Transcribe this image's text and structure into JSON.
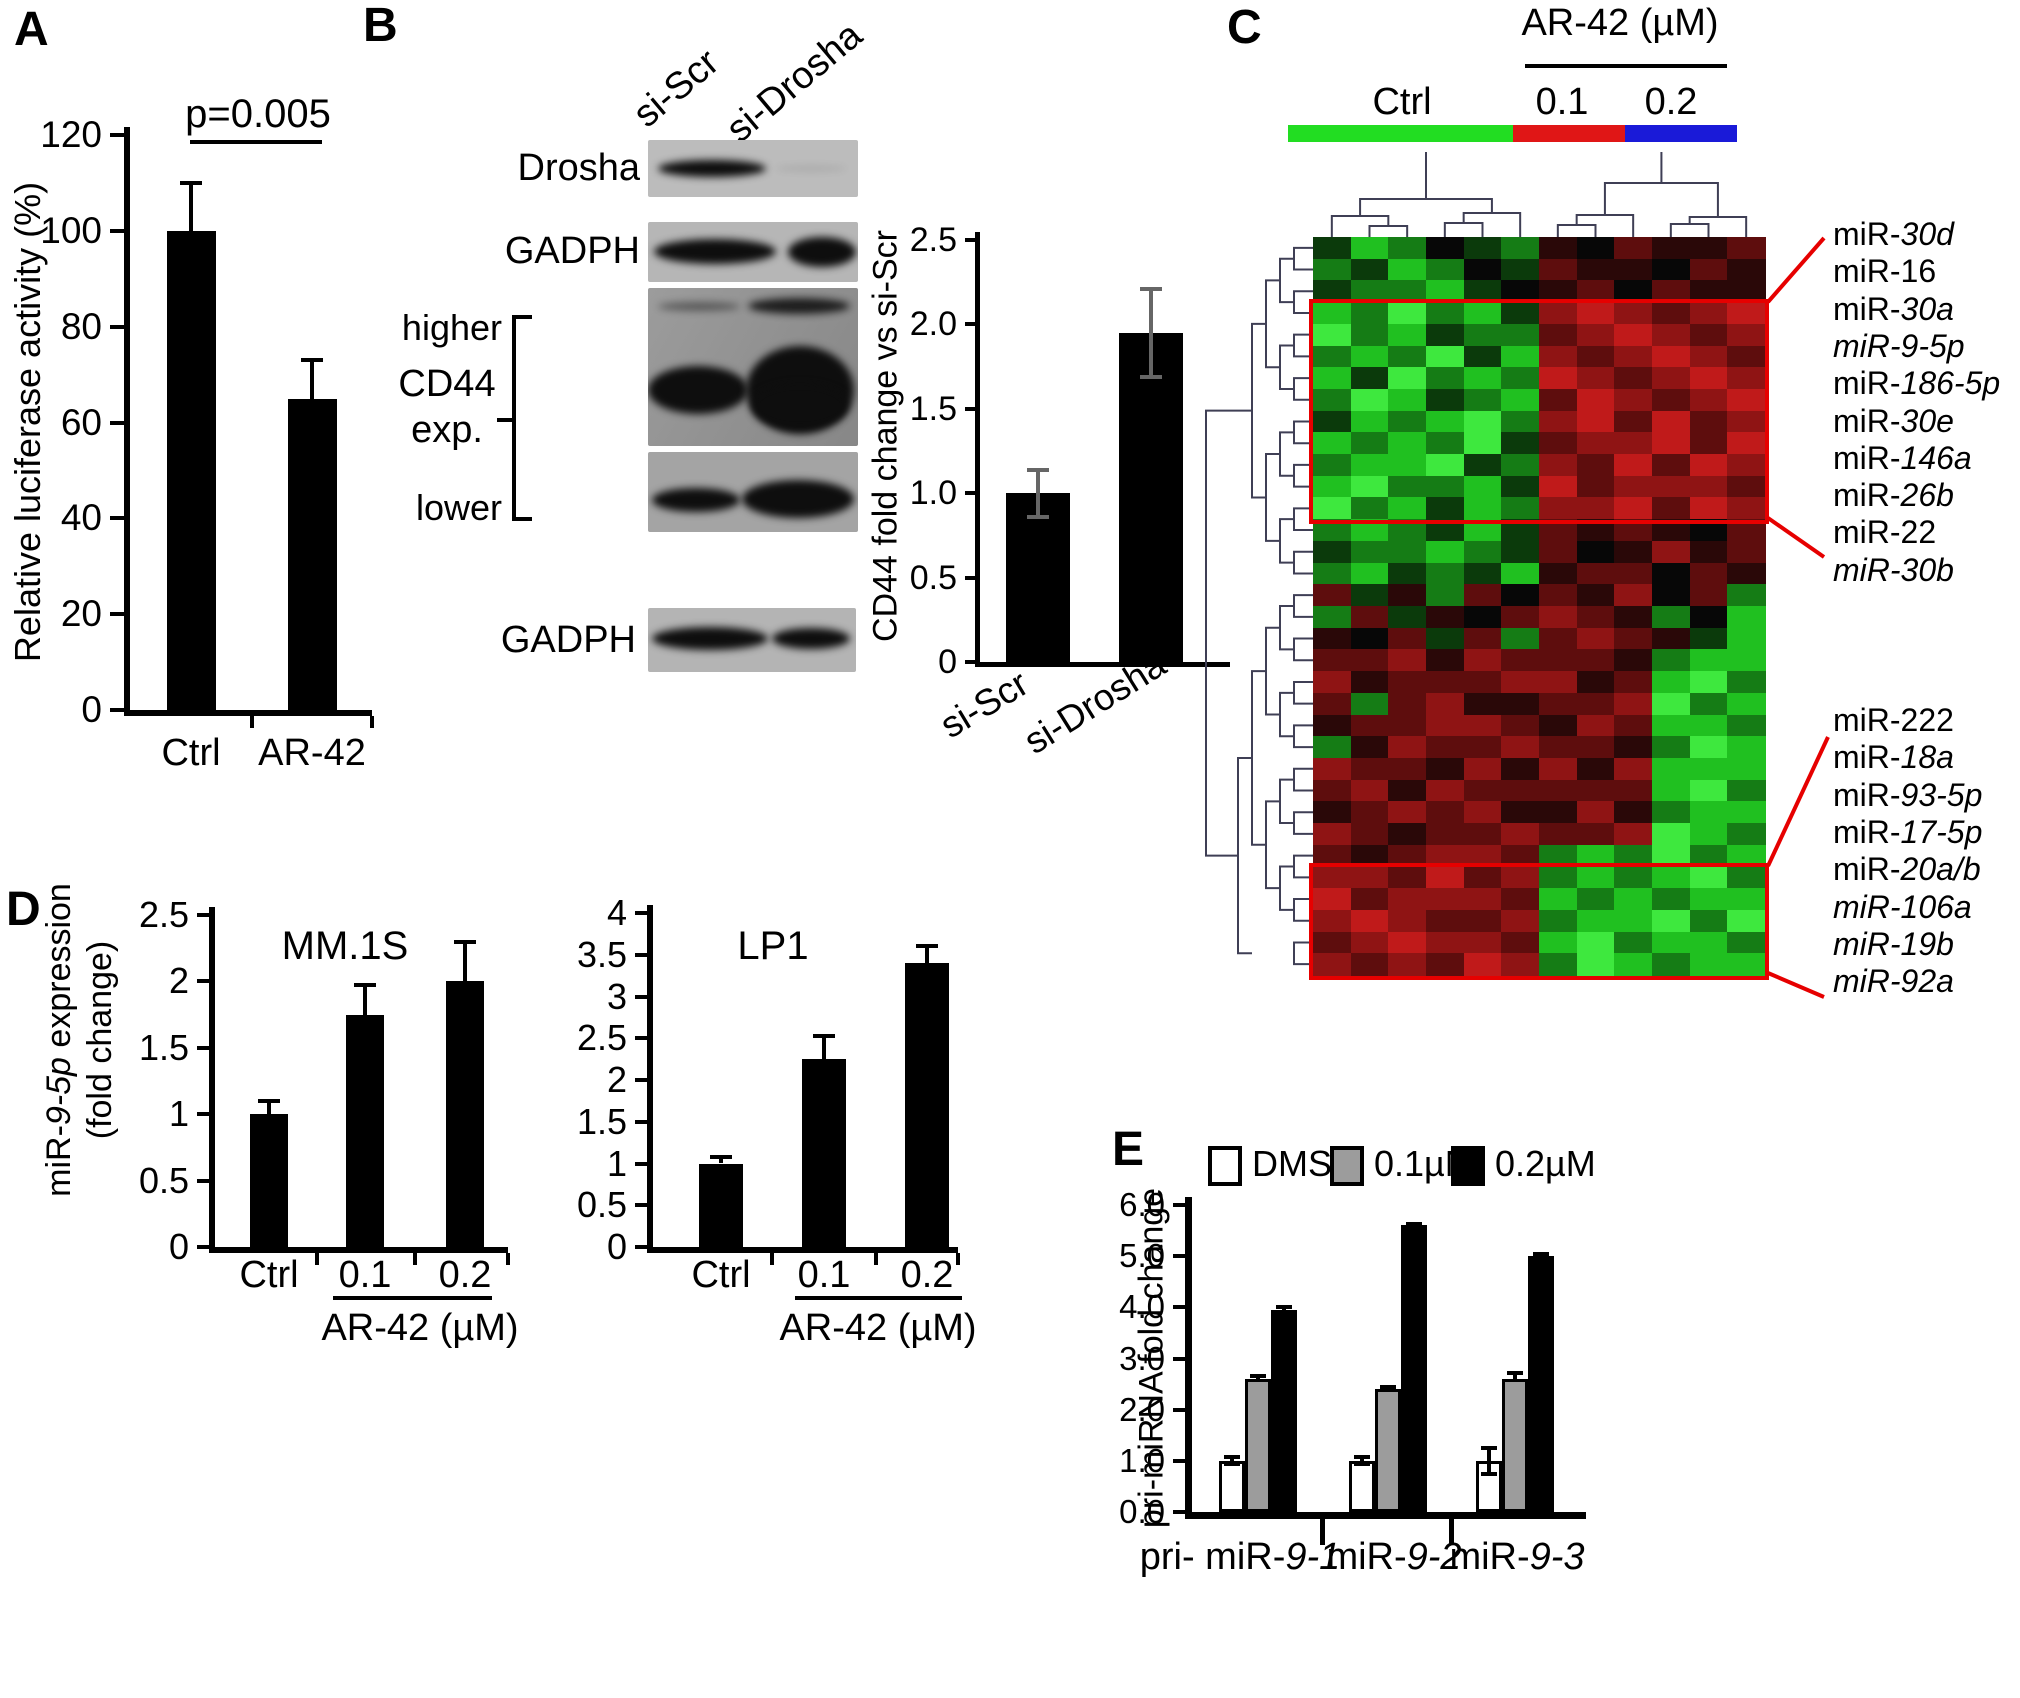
{
  "figure": {
    "panels": {
      "A": {
        "label": "A"
      },
      "B": {
        "label": "B",
        "blot_column_headers": [
          "si-Scr",
          "si-Drosha"
        ],
        "blot_labels": {
          "row1": "Drosha",
          "row2": "GADPH",
          "higher": "higher",
          "cd44": "CD44 exp.",
          "lower": "lower",
          "row5": "GADPH"
        }
      },
      "C": {
        "label": "C",
        "ctrl_header": "Ctrl",
        "treatment_header": "AR-42 (µM)",
        "doses": [
          "0.1",
          "0.2"
        ]
      },
      "D": {
        "label": "D"
      },
      "E": {
        "label": "E"
      }
    }
  },
  "chart_data": [
    {
      "id": "lucif",
      "type": "bar",
      "ylabel": "Relative luciferase activity (%)",
      "categories": [
        "Ctrl",
        "AR-42"
      ],
      "values": [
        100,
        65
      ],
      "errors": [
        10,
        8
      ],
      "ylim": [
        0,
        120
      ],
      "yticks": [
        "0",
        "20",
        "40",
        "60",
        "80",
        "100",
        "120"
      ],
      "annotation": "p=0.005"
    },
    {
      "id": "cd44",
      "type": "bar",
      "ylabel": "CD44 fold change vs si-Scr",
      "categories": [
        "si-Scr",
        "si-Drosha"
      ],
      "values": [
        1.0,
        1.95
      ],
      "errors": [
        0.14,
        0.26
      ],
      "ylim": [
        0,
        2.5
      ],
      "yticks": [
        "0",
        "0.5",
        "1.0",
        "1.5",
        "2.0",
        "2.5"
      ]
    },
    {
      "id": "mm1s",
      "type": "bar",
      "title": "MM.1S",
      "ylabel": "miR-9-5p expression (fold change)",
      "ylabel_segments": [
        {
          "t": "miR-"
        },
        {
          "t": "9-5p",
          "i": true
        },
        {
          "t": " expression"
        }
      ],
      "ylabel_line2": "(fold change)",
      "xlabel": "AR-42 (µM)",
      "categories": [
        "Ctrl",
        "0.1",
        "0.2"
      ],
      "values": [
        1.0,
        1.75,
        2.0
      ],
      "errors": [
        0.1,
        0.22,
        0.3
      ],
      "ylim": [
        0,
        2.5
      ],
      "yticks": [
        "0",
        "0.5",
        "1",
        "1.5",
        "2",
        "2.5"
      ]
    },
    {
      "id": "lp1",
      "type": "bar",
      "title": "LP1",
      "xlabel": "AR-42 (µM)",
      "categories": [
        "Ctrl",
        "0.1",
        "0.2"
      ],
      "values": [
        1.0,
        2.25,
        3.4
      ],
      "errors": [
        0.08,
        0.28,
        0.2
      ],
      "ylim": [
        0,
        4
      ],
      "yticks": [
        "0",
        "0.5",
        "1",
        "1.5",
        "2",
        "2.5",
        "3",
        "3.5",
        "4"
      ]
    },
    {
      "id": "primir",
      "type": "grouped-bar",
      "ylabel": "pri-miRNA fold change",
      "categories": [
        {
          "pre": "pri- miR-",
          "it": "9-1"
        },
        {
          "pre": "miR-",
          "it": "9-2"
        },
        {
          "pre": "miR-",
          "it": "9-3"
        }
      ],
      "series": [
        {
          "name": "DMSO",
          "color": "#ffffff",
          "values": [
            1.0,
            1.0,
            1.0
          ],
          "errors": [
            0.07,
            0.07,
            0.25
          ]
        },
        {
          "name": "0.1µM",
          "color": "#9c9c9c",
          "values": [
            2.6,
            2.4,
            2.6
          ],
          "errors": [
            0.05,
            0.05,
            0.12
          ]
        },
        {
          "name": "0.2µM",
          "color": "#000000",
          "values": [
            3.95,
            5.6,
            5.0
          ],
          "errors": [
            0.06,
            0.03,
            0.05
          ]
        }
      ],
      "ylim": [
        0,
        6
      ],
      "yticks": [
        "0.0",
        "1.0",
        "2.0",
        "3.0",
        "4.0",
        "5.0",
        "6.0"
      ],
      "legend_position": "top"
    },
    {
      "id": "mirheat",
      "type": "heatmap",
      "condition_groups": [
        {
          "name": "Ctrl",
          "n_cols": 6,
          "color": "#22dd22"
        },
        {
          "name": "0.1",
          "n_cols": 3,
          "color": "#e01616"
        },
        {
          "name": "0.2",
          "n_cols": 3,
          "color": "#1a1ad8"
        }
      ],
      "palette": {
        "0": "#070707",
        "1": "#0b3a0b",
        "2": "#157c15",
        "3": "#20c020",
        "4": "#3ee83e",
        "5": "#2a0808",
        "6": "#5e0d0d",
        "7": "#8f1414",
        "8": "#c01a1a"
      },
      "rows": [
        "132012506556",
        "213201655065",
        "122310560655",
        "324231787678",
        "423122678767",
        "232413767876",
        "314232876787",
        "243123687678",
        "132342786867",
        "323241677868",
        "233412768687",
        "342231867776",
        "423132778687",
        "232131656506",
        "122321605756",
        "231213566065",
        "615260657062",
        "261506765203",
        "506162676513",
        "667576665233",
        "756667756342",
        "626755667423",
        "566776576332",
        "257667665243",
        "766575757333",
        "675766666342",
        "567675575233",
        "765667667432",
        "656776232423",
        "776867232342",
        "867776323233",
        "787667233424",
        "678776342332",
        "767687243233"
      ],
      "highlight_boxes": [
        {
          "rows": [
            3,
            13
          ]
        },
        {
          "rows": [
            29,
            34
          ]
        }
      ],
      "labels_upper": [
        {
          "pre": "miR-",
          "it": "30d"
        },
        {
          "pre": "miR-16",
          "it": ""
        },
        {
          "pre": "miR-",
          "it": "30a"
        },
        {
          "pre": "",
          "it": "miR-9-5p"
        },
        {
          "pre": "miR-",
          "it": "186-5p"
        },
        {
          "pre": "miR-",
          "it": "30e"
        },
        {
          "pre": "miR-",
          "it": "146a"
        },
        {
          "pre": "miR-",
          "it": "26b"
        },
        {
          "pre": "miR-22",
          "it": ""
        },
        {
          "pre": "",
          "it": "miR-30b"
        }
      ],
      "labels_lower": [
        {
          "pre": "miR-222",
          "it": ""
        },
        {
          "pre": "miR-",
          "it": "18a"
        },
        {
          "pre": "miR-",
          "it": "93-5p"
        },
        {
          "pre": "miR-",
          "it": "17-5p"
        },
        {
          "pre": "miR-",
          "it": "20a/b"
        },
        {
          "pre": "",
          "it": "miR-106a"
        },
        {
          "pre": "",
          "it": "miR-19b"
        },
        {
          "pre": "",
          "it": "miR-92a"
        }
      ]
    }
  ]
}
